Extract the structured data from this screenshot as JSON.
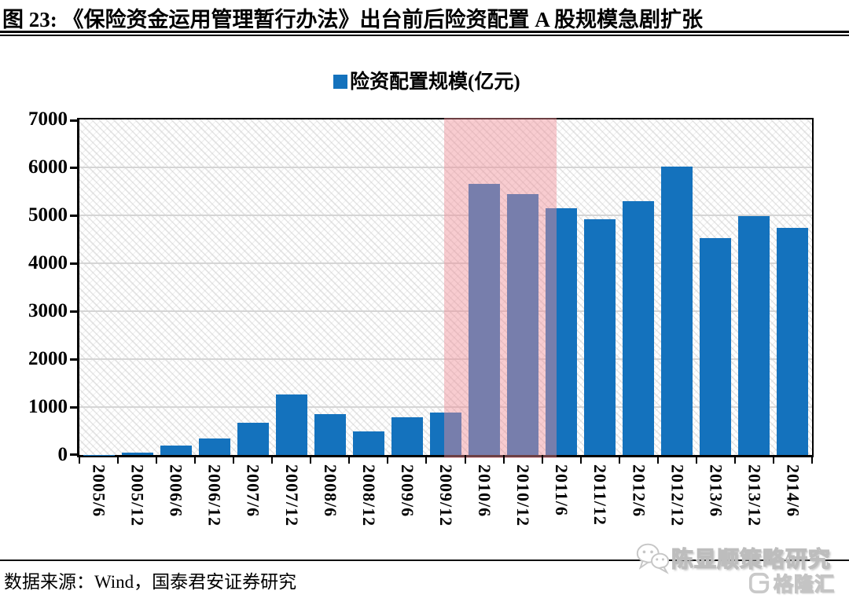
{
  "title": "图 23: 《保险资金运用管理暂行办法》出台前后险资配置 A 股规模急剧扩张",
  "legend": {
    "label": "险资配置规模(亿元)"
  },
  "source_line": "数据来源：Wind，国泰君安证券研究",
  "watermark": {
    "text": "陈显顺策略研究",
    "logo_text": "格隆汇"
  },
  "colors": {
    "bar": "#1472BD",
    "highlight_fill": "#EF8F96",
    "highlight_opacity": 0.45,
    "gridline": "#D5D5D5",
    "axis": "#000000",
    "watermark_gray": "#C6C6C6"
  },
  "chart_data": {
    "type": "bar",
    "title": "险资配置规模(亿元)",
    "categories": [
      "2005/6",
      "2005/12",
      "2006/6",
      "2006/12",
      "2007/6",
      "2007/12",
      "2008/6",
      "2008/12",
      "2009/6",
      "2009/12",
      "2010/6",
      "2010/12",
      "2011/6",
      "2011/12",
      "2012/6",
      "2012/12",
      "2013/6",
      "2013/12",
      "2014/6"
    ],
    "values": [
      8,
      45,
      190,
      340,
      680,
      1270,
      845,
      490,
      790,
      890,
      5650,
      5450,
      5150,
      4920,
      5300,
      6010,
      4530,
      4980,
      4730
    ],
    "xlabel": "",
    "ylabel": "",
    "ylim": [
      0,
      7000
    ],
    "y_ticks": [
      0,
      1000,
      2000,
      3000,
      4000,
      5000,
      6000,
      7000
    ],
    "grid": "horizontal",
    "background_pattern": "diagonal-hatch",
    "legend_position": "top-center",
    "highlight_region": {
      "from_category": "2009/12",
      "to_category": "2011/6",
      "color": "#EF8F96",
      "opacity": 0.45
    }
  }
}
